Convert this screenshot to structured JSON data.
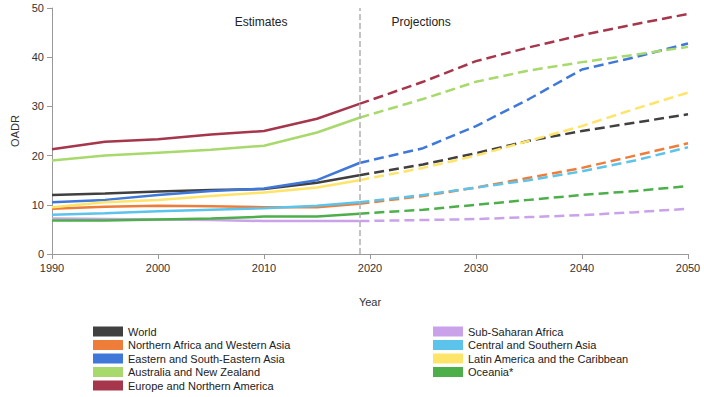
{
  "chart_data": {
    "type": "line",
    "x_label": "Year",
    "y_label": "OADR",
    "annotations": [
      "Estimates",
      "Projections"
    ],
    "divider_x": 2019,
    "x": [
      1990,
      1995,
      2000,
      2005,
      2010,
      2015,
      2019,
      2025,
      2030,
      2035,
      2040,
      2045,
      2050
    ],
    "xlim": [
      1990,
      2050
    ],
    "xticks": [
      1990,
      2000,
      2010,
      2020,
      2030,
      2040,
      2050
    ],
    "ylim": [
      0,
      50
    ],
    "yticks": [
      0,
      10,
      20,
      30,
      40,
      50
    ],
    "grid": false,
    "series": [
      {
        "name": "World",
        "color": "#404040",
        "values": [
          12,
          12.3,
          12.7,
          13,
          13.2,
          14.5,
          16,
          18.2,
          20.5,
          23,
          25,
          26.7,
          28.4
        ]
      },
      {
        "name": "Northern Africa and Western Asia",
        "color": "#ef7d3a",
        "values": [
          9.2,
          9.6,
          9.8,
          9.7,
          9.5,
          9.5,
          10.2,
          11.8,
          13.5,
          15.5,
          17.5,
          20,
          22.5
        ]
      },
      {
        "name": "Eastern and South-Eastern Asia",
        "color": "#3f78d8",
        "values": [
          10.5,
          11,
          12,
          12.8,
          13.3,
          15,
          18.5,
          21.5,
          26,
          31.5,
          37.5,
          40,
          42.8
        ]
      },
      {
        "name": "Australia and New Zealand",
        "color": "#a8d96c",
        "values": [
          19,
          20,
          20.6,
          21.2,
          22,
          24.7,
          27.7,
          31.5,
          35,
          37.3,
          39,
          40.5,
          42.1
        ]
      },
      {
        "name": "Europe and Northern America",
        "color": "#a5364b",
        "values": [
          21.3,
          22.8,
          23.3,
          24.3,
          25,
          27.5,
          30.5,
          35,
          39.2,
          42,
          44.5,
          46.7,
          48.8
        ]
      },
      {
        "name": "Sub-Saharan Africa",
        "color": "#c9a2ea",
        "values": [
          7.2,
          7.1,
          7,
          6.9,
          6.7,
          6.7,
          6.7,
          6.9,
          7.1,
          7.5,
          7.9,
          8.5,
          9.2
        ]
      },
      {
        "name": "Central and Southern Asia",
        "color": "#5cc3ea",
        "values": [
          8,
          8.3,
          8.7,
          9,
          9.3,
          9.8,
          10.5,
          12,
          13.5,
          15,
          16.8,
          19,
          21.7
        ]
      },
      {
        "name": "Latin America and the Caribbean",
        "color": "#ffe46a",
        "values": [
          9.5,
          10.5,
          11,
          11.8,
          12.5,
          13.5,
          15,
          17.5,
          20,
          23,
          26,
          29.5,
          32.8
        ]
      },
      {
        "name": "Oceania*",
        "color": "#4caf4a",
        "values": [
          6.8,
          6.8,
          7,
          7.2,
          7.6,
          7.6,
          8.2,
          9,
          10,
          11,
          12,
          12.8,
          13.8
        ]
      }
    ]
  }
}
